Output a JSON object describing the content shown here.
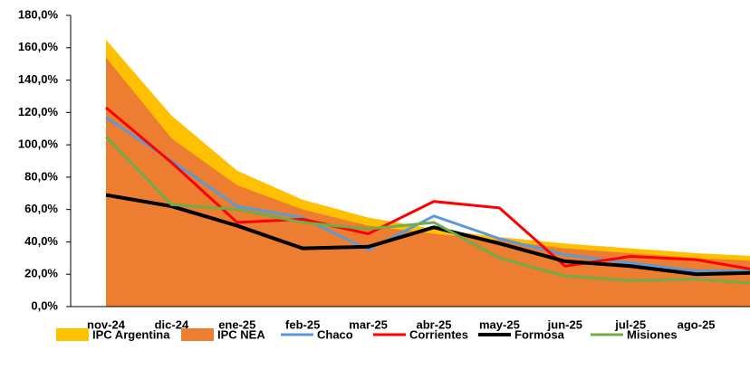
{
  "chart_data": {
    "type": "line",
    "categories": [
      "nov-24",
      "dic-24",
      "ene-25",
      "feb-25",
      "mar-25",
      "abr-25",
      "may-25",
      "jun-25",
      "jul-25",
      "ago-25",
      null
    ],
    "series": [
      {
        "name": "IPC Argentina",
        "color": "#ffc000",
        "kind": "area",
        "values": [
          165,
          118,
          84,
          66,
          55,
          48,
          43,
          39,
          36,
          33,
          31
        ]
      },
      {
        "name": "IPC NEA",
        "color": "#ed7d31",
        "kind": "area",
        "values": [
          154,
          104,
          75,
          60,
          50,
          45,
          41,
          36,
          33,
          30,
          28
        ]
      },
      {
        "name": "Chaco",
        "color": "#5b9bd5",
        "kind": "line",
        "values": [
          117,
          90,
          62,
          55,
          35,
          56,
          42,
          32,
          27,
          22,
          22
        ]
      },
      {
        "name": "Corrientes",
        "color": "#ff0000",
        "kind": "line",
        "values": [
          123,
          89,
          52,
          54,
          45,
          65,
          61,
          25,
          31,
          29,
          22
        ]
      },
      {
        "name": "Formosa",
        "color": "#000000",
        "kind": "line",
        "values": [
          69,
          62,
          50,
          36,
          37,
          49,
          39,
          28,
          25,
          20,
          21
        ]
      },
      {
        "name": "Misiones",
        "color": "#70ad47",
        "kind": "line",
        "values": [
          105,
          63,
          60,
          52,
          48,
          52,
          30,
          19,
          16,
          17,
          14
        ]
      }
    ],
    "ylim": [
      0,
      180
    ],
    "yticks": [
      {
        "value": 0,
        "label": "0,0%"
      },
      {
        "value": 20,
        "label": "20,0%"
      },
      {
        "value": 40,
        "label": "40,0%"
      },
      {
        "value": 60,
        "label": "60,0%"
      },
      {
        "value": 80,
        "label": "80,0%"
      },
      {
        "value": 100,
        "label": "100,0%"
      },
      {
        "value": 120,
        "label": "120,0%"
      },
      {
        "value": 140,
        "label": "140,0%"
      },
      {
        "value": 160,
        "label": "160,0%"
      },
      {
        "value": 180,
        "label": "180,0%"
      }
    ],
    "legend": "bottom"
  }
}
